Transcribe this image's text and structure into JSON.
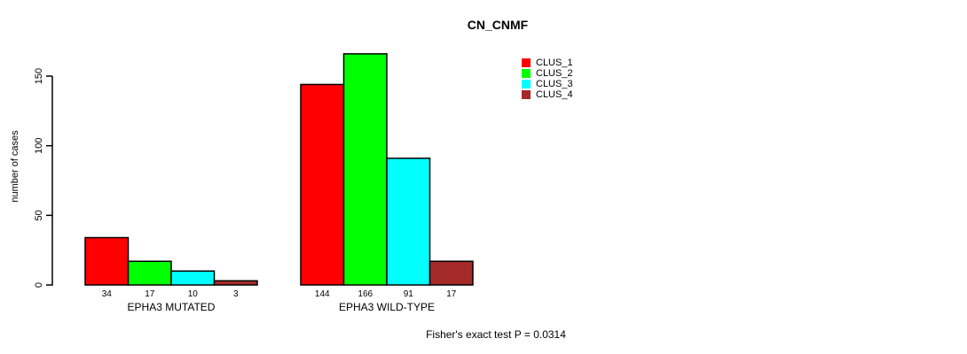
{
  "chart_data": {
    "type": "bar",
    "title": "CN_CNMF",
    "ylabel": "number of cases",
    "xlabel": "",
    "categories": [
      "EPHA3 MUTATED",
      "EPHA3 WILD-TYPE"
    ],
    "series": [
      {
        "name": "CLUS_1",
        "color": "#FF0000",
        "values": [
          34,
          144
        ]
      },
      {
        "name": "CLUS_2",
        "color": "#00FF00",
        "values": [
          17,
          166
        ]
      },
      {
        "name": "CLUS_3",
        "color": "#00FFFF",
        "values": [
          10,
          91
        ]
      },
      {
        "name": "CLUS_4",
        "color": "#A52A2A",
        "values": [
          3,
          17
        ]
      }
    ],
    "bar_value_labels": [
      [
        "34",
        "17",
        "10",
        "3"
      ],
      [
        "144",
        "166",
        "91",
        "17"
      ]
    ],
    "yticks": [
      0,
      50,
      100,
      150
    ],
    "ylim": [
      0,
      166
    ],
    "grid": false,
    "legend_position": "top-right",
    "bar_border_color": "#000000",
    "axis_color": "#000000",
    "background_color": "#FFFFFF",
    "annotation": "Fisher's exact test P = 0.0314"
  }
}
